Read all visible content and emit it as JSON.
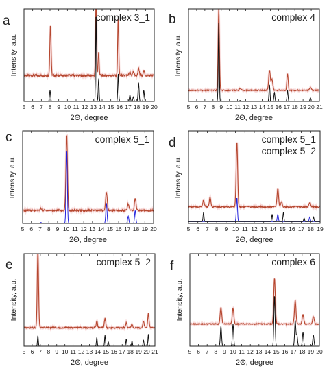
{
  "colors": {
    "experimental": "#b5472f",
    "simulated_black": "#111111",
    "simulated_blue": "#2222dd",
    "label_blue": "#1515e0",
    "axis": "#222222"
  },
  "chart_data": [
    {
      "panel": "a",
      "type": "line",
      "title": "complex 3_1",
      "xlabel": "2Θ, degree",
      "ylabel": "Intensity, a.u.",
      "xlim": [
        5,
        20
      ],
      "xticks": [
        "5",
        "6",
        "7",
        "8",
        "9",
        "10",
        "11",
        "12",
        "13",
        "14",
        "15",
        "16",
        "17",
        "18",
        "19",
        "20"
      ],
      "y_axis_ticks": false,
      "series": [
        {
          "role": "experimental",
          "color": "#b5472f",
          "baseline": 0.28,
          "noise": 0.012,
          "peaks": [
            [
              8.05,
              0.55,
              0.07
            ],
            [
              13.3,
              0.85,
              0.06
            ],
            [
              13.6,
              0.25,
              0.06
            ],
            [
              15.85,
              0.62,
              0.06
            ],
            [
              17.2,
              0.03,
              0.08
            ],
            [
              17.6,
              0.04,
              0.08
            ],
            [
              18.2,
              0.07,
              0.08
            ],
            [
              18.8,
              0.05,
              0.08
            ]
          ]
        },
        {
          "role": "simulated",
          "color": "#111111",
          "baseline": 0.0,
          "noise": 0,
          "peaks": [
            [
              8.0,
              0.12,
              0.06
            ],
            [
              13.3,
              0.95,
              0.05
            ],
            [
              13.6,
              0.25,
              0.05
            ],
            [
              15.85,
              0.3,
              0.05
            ],
            [
              17.2,
              0.07,
              0.06
            ],
            [
              17.6,
              0.05,
              0.06
            ],
            [
              18.2,
              0.2,
              0.06
            ],
            [
              18.8,
              0.12,
              0.06
            ]
          ]
        }
      ]
    },
    {
      "panel": "b",
      "type": "line",
      "title": "complex 4",
      "xlabel": "2Θ, degree",
      "ylabel": "Intensity, a.u.",
      "xlim": [
        5,
        21
      ],
      "xticks": [
        "5",
        "6",
        "7",
        "8",
        "9",
        "10",
        "11",
        "12",
        "13",
        "14",
        "15",
        "16",
        "17",
        "18",
        "19",
        "20",
        "21"
      ],
      "y_axis_ticks": false,
      "series": [
        {
          "role": "experimental",
          "color": "#b5472f",
          "baseline": 0.12,
          "noise": 0.006,
          "peaks": [
            [
              8.7,
              0.88,
              0.08
            ],
            [
              14.9,
              0.22,
              0.1
            ],
            [
              15.2,
              0.12,
              0.1
            ],
            [
              17.1,
              0.18,
              0.08
            ],
            [
              11.3,
              0.02,
              0.1
            ],
            [
              19.9,
              0.03,
              0.1
            ]
          ]
        },
        {
          "role": "simulated",
          "color": "#111111",
          "baseline": 0.0,
          "noise": 0,
          "peaks": [
            [
              8.7,
              0.85,
              0.06
            ],
            [
              14.9,
              0.18,
              0.06
            ],
            [
              15.5,
              0.1,
              0.06
            ],
            [
              17.1,
              0.12,
              0.06
            ],
            [
              11.3,
              0.01,
              0.06
            ],
            [
              19.9,
              0.04,
              0.06
            ]
          ]
        }
      ]
    },
    {
      "panel": "c",
      "type": "line",
      "title": "complex 5_1",
      "xlabel": "2Θ, degree",
      "ylabel": "Intensity, a.u.",
      "xlim": [
        5,
        20
      ],
      "xticks": [
        "5",
        "6",
        "7",
        "8",
        "9",
        "10",
        "11",
        "12",
        "13",
        "14",
        "15",
        "16",
        "17",
        "18",
        "19",
        "20"
      ],
      "y_axis_ticks": false,
      "series": [
        {
          "role": "experimental",
          "color": "#b5472f",
          "baseline": 0.14,
          "noise": 0.01,
          "peaks": [
            [
              10.05,
              0.82,
              0.09
            ],
            [
              14.6,
              0.2,
              0.09
            ],
            [
              17.1,
              0.07,
              0.09
            ],
            [
              17.9,
              0.13,
              0.09
            ],
            [
              7.1,
              0.02,
              0.1
            ]
          ]
        },
        {
          "role": "simulated",
          "color": "#2222dd",
          "baseline": 0.0,
          "noise": 0,
          "peaks": [
            [
              10.05,
              0.8,
              0.07
            ],
            [
              14.6,
              0.22,
              0.07
            ],
            [
              17.1,
              0.08,
              0.07
            ],
            [
              17.9,
              0.14,
              0.07
            ],
            [
              7.1,
              0.01,
              0.07
            ]
          ]
        }
      ]
    },
    {
      "panel": "d",
      "type": "line",
      "title": "complex 5_1",
      "title2": "complex 5_2",
      "xlabel": "2Θ, degree",
      "ylabel": "Intensity, a.u.",
      "xlim": [
        5,
        19
      ],
      "xticks": [
        "5",
        "6",
        "7",
        "8",
        "9",
        "10",
        "11",
        "12",
        "13",
        "14",
        "15",
        "16",
        "17",
        "18",
        "19"
      ],
      "y_axis_ticks": false,
      "series": [
        {
          "role": "experimental",
          "color": "#b5472f",
          "baseline": 0.18,
          "noise": 0.008,
          "peaks": [
            [
              6.6,
              0.07,
              0.08
            ],
            [
              7.3,
              0.1,
              0.08
            ],
            [
              10.15,
              0.7,
              0.08
            ],
            [
              14.5,
              0.2,
              0.08
            ],
            [
              14.9,
              0.05,
              0.08
            ],
            [
              17.9,
              0.05,
              0.08
            ]
          ]
        },
        {
          "role": "simulated",
          "color": "#2222dd",
          "baseline": 0.02,
          "noise": 0,
          "peaks": [
            [
              10.15,
              0.26,
              0.06
            ],
            [
              14.5,
              0.08,
              0.06
            ],
            [
              17.9,
              0.05,
              0.06
            ]
          ]
        },
        {
          "role": "simulated",
          "color": "#111111",
          "baseline": 0.02,
          "noise": 0,
          "peaks": [
            [
              6.6,
              0.1,
              0.05
            ],
            [
              13.9,
              0.08,
              0.05
            ],
            [
              15.1,
              0.1,
              0.05
            ],
            [
              17.3,
              0.04,
              0.05
            ],
            [
              18.3,
              0.05,
              0.05
            ]
          ]
        }
      ]
    },
    {
      "panel": "e",
      "type": "line",
      "title": "complex 5_2",
      "xlabel": "2Θ, degree",
      "ylabel": "Intensity, a.u.",
      "xlim": [
        5,
        21
      ],
      "xticks": [
        "5",
        "6",
        "7",
        "8",
        "9",
        "10",
        "11",
        "12",
        "13",
        "14",
        "15",
        "16",
        "17",
        "18",
        "19",
        "20",
        "21"
      ],
      "y_axis_ticks": false,
      "series": [
        {
          "role": "experimental",
          "color": "#b5472f",
          "baseline": 0.2,
          "noise": 0.008,
          "peaks": [
            [
              6.7,
              0.85,
              0.08
            ],
            [
              13.9,
              0.07,
              0.08
            ],
            [
              14.9,
              0.1,
              0.08
            ],
            [
              17.5,
              0.05,
              0.08
            ],
            [
              18.2,
              0.04,
              0.08
            ],
            [
              19.6,
              0.07,
              0.08
            ],
            [
              20.2,
              0.15,
              0.08
            ]
          ]
        },
        {
          "role": "simulated",
          "color": "#111111",
          "baseline": 0.0,
          "noise": 0,
          "peaks": [
            [
              6.7,
              0.12,
              0.05
            ],
            [
              13.9,
              0.1,
              0.05
            ],
            [
              14.9,
              0.12,
              0.05
            ],
            [
              15.3,
              0.05,
              0.05
            ],
            [
              17.5,
              0.08,
              0.05
            ],
            [
              18.2,
              0.06,
              0.05
            ],
            [
              19.6,
              0.07,
              0.05
            ],
            [
              20.2,
              0.13,
              0.05
            ]
          ]
        }
      ]
    },
    {
      "panel": "f",
      "type": "line",
      "title": "complex 6",
      "xlabel": "2Θ, degree",
      "ylabel": "Intensity, a.u.",
      "xlim": [
        5,
        20
      ],
      "xticks": [
        "5",
        "6",
        "7",
        "8",
        "9",
        "10",
        "11",
        "12",
        "13",
        "14",
        "15",
        "16",
        "17",
        "18",
        "19",
        "20"
      ],
      "y_axis_ticks": false,
      "series": [
        {
          "role": "experimental",
          "color": "#b5472f",
          "baseline": 0.24,
          "noise": 0.006,
          "peaks": [
            [
              8.6,
              0.18,
              0.09
            ],
            [
              10.0,
              0.17,
              0.09
            ],
            [
              14.8,
              0.5,
              0.09
            ],
            [
              17.2,
              0.25,
              0.09
            ],
            [
              18.1,
              0.1,
              0.09
            ],
            [
              19.3,
              0.08,
              0.09
            ]
          ]
        },
        {
          "role": "simulated",
          "color": "#111111",
          "baseline": 0.0,
          "noise": 0,
          "peaks": [
            [
              8.6,
              0.22,
              0.07
            ],
            [
              10.0,
              0.24,
              0.07
            ],
            [
              14.8,
              0.55,
              0.07
            ],
            [
              17.2,
              0.28,
              0.07
            ],
            [
              17.4,
              0.12,
              0.07
            ],
            [
              18.1,
              0.15,
              0.07
            ],
            [
              19.3,
              0.12,
              0.07
            ]
          ]
        }
      ]
    }
  ]
}
